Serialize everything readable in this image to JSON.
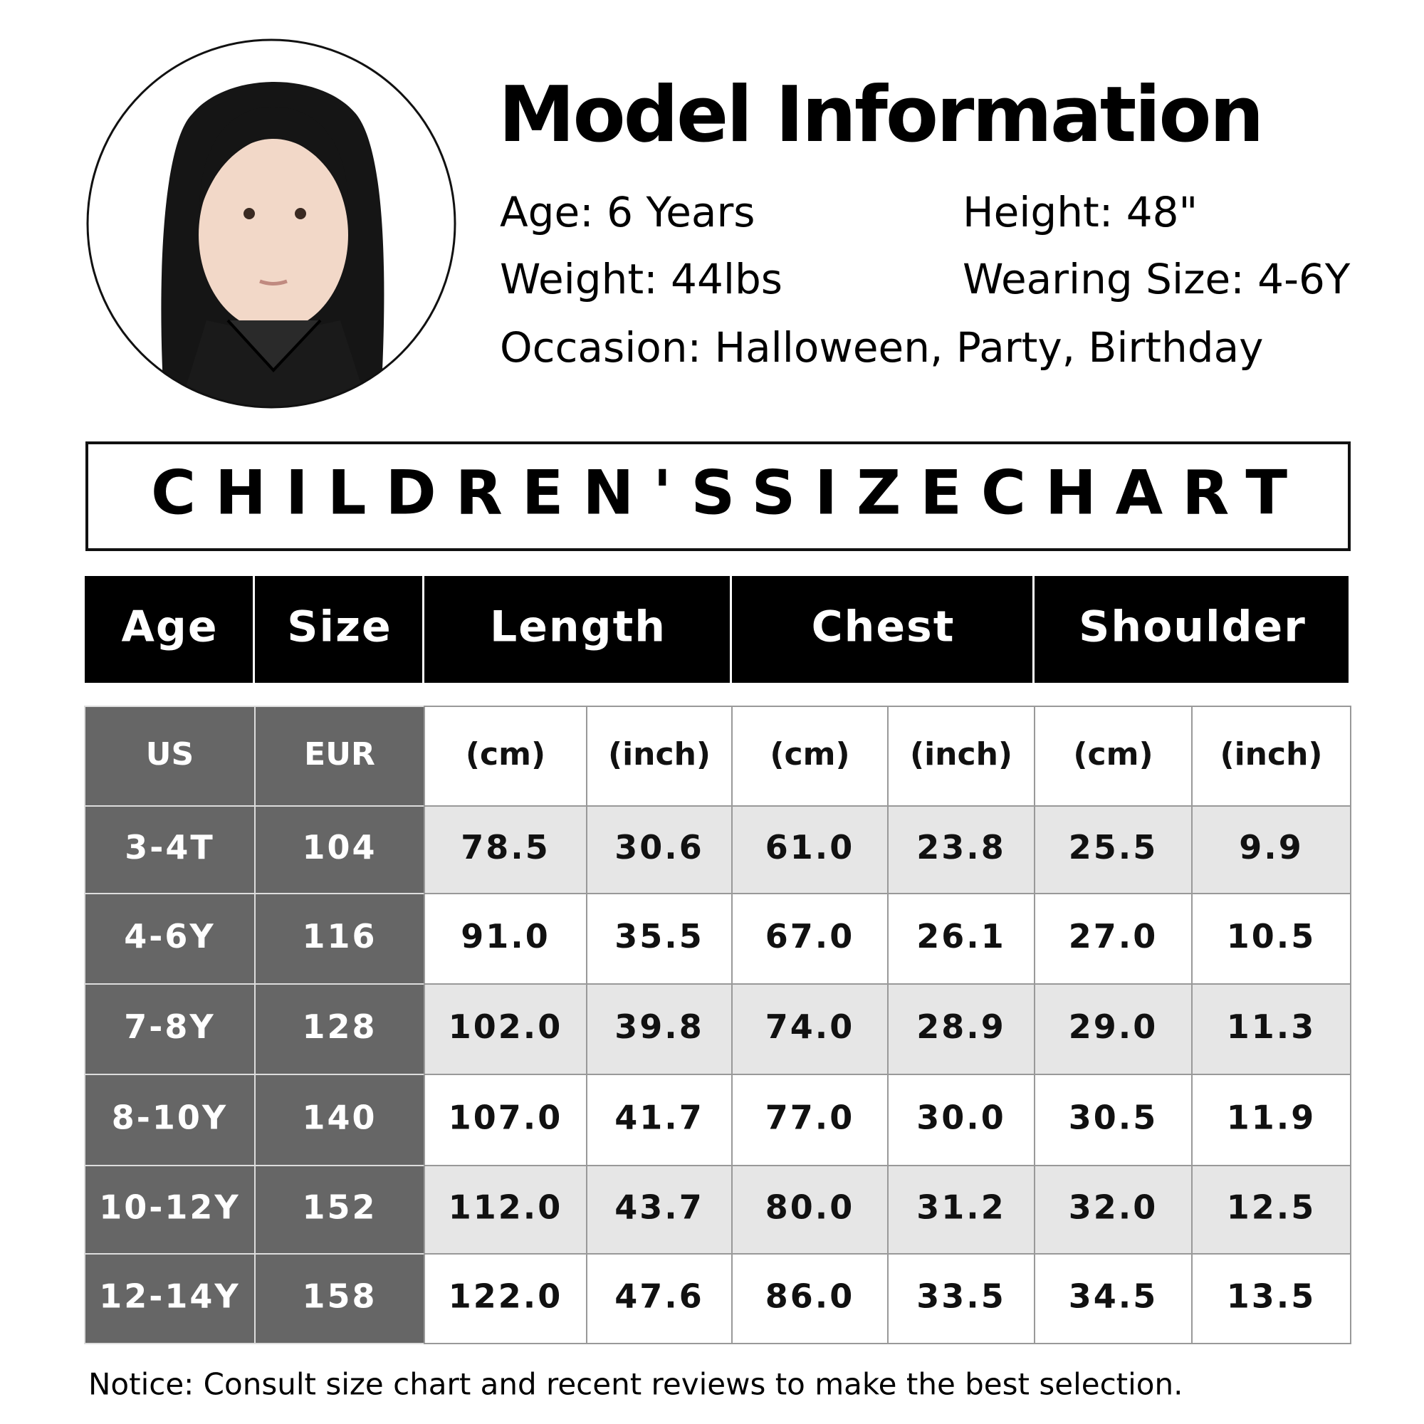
{
  "model_info": {
    "title": "Model Information",
    "age": "Age: 6 Years",
    "height": "Height: 48\"",
    "weight": "Weight: 44lbs",
    "wearing_size": "Wearing Size: 4-6Y",
    "occasion": "Occasion: Halloween, Party, Birthday"
  },
  "banner": "CHILDREN'SSIZECHART",
  "table": {
    "headers": [
      "Age",
      "Size",
      "Length",
      "Chest",
      "Shoulder"
    ],
    "subheaders": [
      "US",
      "EUR",
      "(cm)",
      "(inch)",
      "(cm)",
      "(inch)",
      "(cm)",
      "(inch)"
    ],
    "rows": [
      [
        "3-4T",
        "104",
        "78.5",
        "30.6",
        "61.0",
        "23.8",
        "25.5",
        "9.9"
      ],
      [
        "4-6Y",
        "116",
        "91.0",
        "35.5",
        "67.0",
        "26.1",
        "27.0",
        "10.5"
      ],
      [
        "7-8Y",
        "128",
        "102.0",
        "39.8",
        "74.0",
        "28.9",
        "29.0",
        "11.3"
      ],
      [
        "8-10Y",
        "140",
        "107.0",
        "41.7",
        "77.0",
        "30.0",
        "30.5",
        "11.9"
      ],
      [
        "10-12Y",
        "152",
        "112.0",
        "43.7",
        "80.0",
        "31.2",
        "32.0",
        "12.5"
      ],
      [
        "12-14Y",
        "158",
        "122.0",
        "47.6",
        "86.0",
        "33.5",
        "34.5",
        "13.5"
      ]
    ]
  },
  "notice": "Notice: Consult size chart and recent reviews to make the best selection."
}
